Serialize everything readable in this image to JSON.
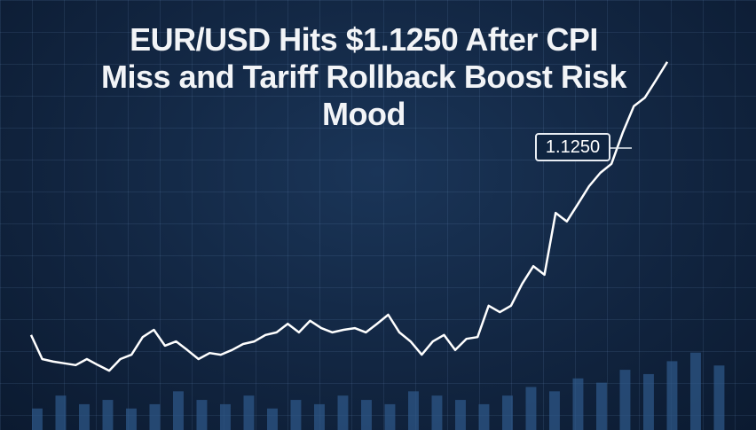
{
  "chart_data": {
    "type": "line",
    "title": "EUR/USD Hits $1.1250 After CPI Miss and Tariff Rollback Boost Risk Mood",
    "annotation": "1.1250",
    "ylim": [
      0,
      100
    ],
    "series": [
      {
        "name": "EUR/USD",
        "color": "#ffffff",
        "values": [
          22.1,
          16.5,
          15.9,
          15.5,
          15.1,
          16.5,
          15.1,
          13.8,
          16.5,
          17.5,
          21.6,
          23.3,
          19.6,
          20.6,
          18.6,
          16.5,
          17.9,
          17.5,
          18.6,
          20,
          20.6,
          22.1,
          22.7,
          24.7,
          22.7,
          25.4,
          23.7,
          22.7,
          23.3,
          23.7,
          22.7,
          24.7,
          26.8,
          22.7,
          20.6,
          17.5,
          20.6,
          22.1,
          18.6,
          21.2,
          21.6,
          28.9,
          27.4,
          28.9,
          34,
          38.1,
          36.1,
          50.5,
          48.5,
          52.6,
          56.7,
          59.8,
          61.9,
          69.1,
          75.3,
          77.3,
          81.4,
          85.6
        ]
      },
      {
        "type": "bar",
        "color": "#2f5a8c",
        "values": [
          5,
          8,
          6,
          7,
          5,
          6,
          9,
          7,
          6,
          8,
          5,
          7,
          6,
          8,
          7,
          6,
          9,
          8,
          7,
          6,
          8,
          10,
          9,
          12,
          11,
          14,
          13,
          16,
          18,
          15
        ]
      }
    ]
  }
}
